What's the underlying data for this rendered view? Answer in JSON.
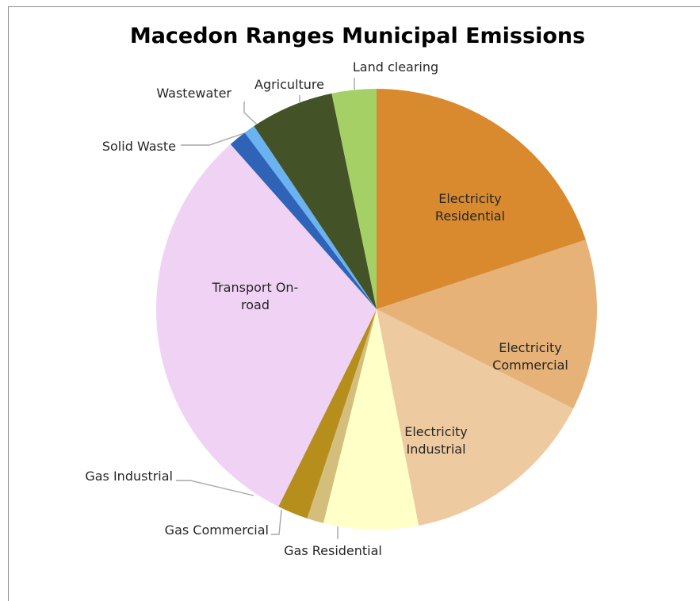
{
  "chart_data": {
    "type": "pie",
    "title": "Macedon Ranges Municipal Emissions",
    "slices": [
      {
        "label": "Electricity Residential",
        "lines": [
          "Electricity",
          "Residential"
        ],
        "value": 19.5,
        "color": "#D98A2F",
        "label_mode": "inside"
      },
      {
        "label": "Electricity Commercial",
        "lines": [
          "Electricity",
          "Commercial"
        ],
        "value": 12.3,
        "color": "#E6B277",
        "label_mode": "inside"
      },
      {
        "label": "Electricity Industrial",
        "lines": [
          "Electricity",
          "Industrial"
        ],
        "value": 14.2,
        "color": "#EECAA0",
        "label_mode": "inside"
      },
      {
        "label": "Gas Residential",
        "lines": [
          "Gas Residential"
        ],
        "value": 6.8,
        "color": "#FFFFC8",
        "label_mode": "outside"
      },
      {
        "label": "Gas Commercial",
        "lines": [
          "Gas Commercial"
        ],
        "value": 1.2,
        "color": "#D4BE7C",
        "label_mode": "outside"
      },
      {
        "label": "Gas Industrial",
        "lines": [
          "Gas Industrial"
        ],
        "value": 2.2,
        "color": "#B68E1C",
        "label_mode": "outside"
      },
      {
        "label": "Transport On-road",
        "lines": [
          "Transport On-",
          "road"
        ],
        "value": 30.5,
        "color": "#F0D2F5",
        "label_mode": "inside"
      },
      {
        "label": "Solid Waste",
        "lines": [
          "Solid Waste"
        ],
        "value": 1.3,
        "color": "#2E63B8",
        "label_mode": "outside"
      },
      {
        "label": "Wastewater",
        "lines": [
          "Wastewater"
        ],
        "value": 0.8,
        "color": "#6AB2F0",
        "label_mode": "outside"
      },
      {
        "label": "Agriculture",
        "lines": [
          "Agriculture"
        ],
        "value": 6.0,
        "color": "#435327",
        "label_mode": "outside"
      },
      {
        "label": "Land clearing",
        "lines": [
          "Land clearing"
        ],
        "value": 3.2,
        "color": "#A5D065",
        "label_mode": "outside"
      }
    ],
    "start_angle": "12 o'clock",
    "direction": "clockwise",
    "legend": "none"
  }
}
